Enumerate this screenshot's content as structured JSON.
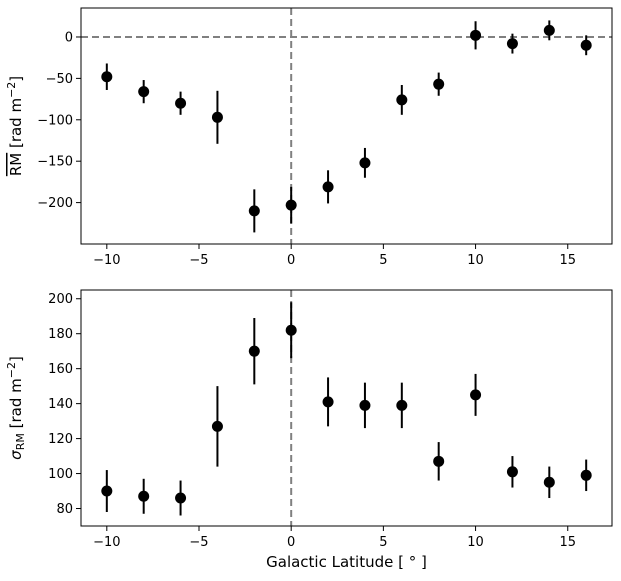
{
  "chart_data": [
    {
      "type": "scatter",
      "panel": "top",
      "ylabel_main": "RM",
      "ylabel_unit": "[rad m",
      "ylabel_exp": "−2",
      "ylabel_close": "]",
      "overline_on_ylabel": true,
      "xlim": [
        -11.4,
        17.4
      ],
      "ylim": [
        -250,
        35
      ],
      "xticks": [
        -10,
        -5,
        0,
        5,
        10,
        15
      ],
      "xtick_labels": [
        "−10",
        "−5",
        "0",
        "5",
        "10",
        "15"
      ],
      "yticks": [
        0,
        -50,
        -100,
        -150,
        -200
      ],
      "ytick_labels": [
        "0",
        "−50",
        "−100",
        "−150",
        "−200"
      ],
      "reference_lines": {
        "horizontal_y": 0,
        "vertical_x": 0,
        "style": "dashed",
        "color": "#808080"
      },
      "marker_color": "#000000",
      "x": [
        -10,
        -8,
        -6,
        -4,
        -2,
        0,
        2,
        4,
        6,
        8,
        10,
        12,
        14,
        16
      ],
      "y": [
        -48,
        -66,
        -80,
        -97,
        -210,
        -203,
        -181,
        -152,
        -76,
        -57,
        2,
        -8,
        8,
        -10
      ],
      "yerr": [
        16,
        14,
        14,
        32,
        26,
        22,
        20,
        18,
        18,
        14,
        17,
        12,
        12,
        12
      ]
    },
    {
      "type": "scatter",
      "panel": "bottom",
      "ylabel_symbol": "σ",
      "ylabel_sub": "RM",
      "ylabel_unit": "[rad m",
      "ylabel_exp": "−2",
      "ylabel_close": "]",
      "xlabel": "Galactic Latitude [ ° ]",
      "xlim": [
        -11.4,
        17.4
      ],
      "ylim": [
        70,
        205
      ],
      "xticks": [
        -10,
        -5,
        0,
        5,
        10,
        15
      ],
      "xtick_labels": [
        "−10",
        "−5",
        "0",
        "5",
        "10",
        "15"
      ],
      "yticks": [
        80,
        100,
        120,
        140,
        160,
        180,
        200
      ],
      "ytick_labels": [
        "80",
        "100",
        "120",
        "140",
        "160",
        "180",
        "200"
      ],
      "reference_lines": {
        "vertical_x": 0,
        "style": "dashed",
        "color": "#808080"
      },
      "marker_color": "#000000",
      "x": [
        -10,
        -8,
        -6,
        -4,
        -2,
        0,
        2,
        4,
        6,
        8,
        10,
        12,
        14,
        16
      ],
      "y": [
        90,
        87,
        86,
        127,
        170,
        182,
        141,
        139,
        139,
        107,
        145,
        101,
        95,
        99
      ],
      "yerr": [
        12,
        10,
        10,
        23,
        19,
        16,
        14,
        13,
        13,
        11,
        12,
        9,
        9,
        9
      ]
    }
  ]
}
